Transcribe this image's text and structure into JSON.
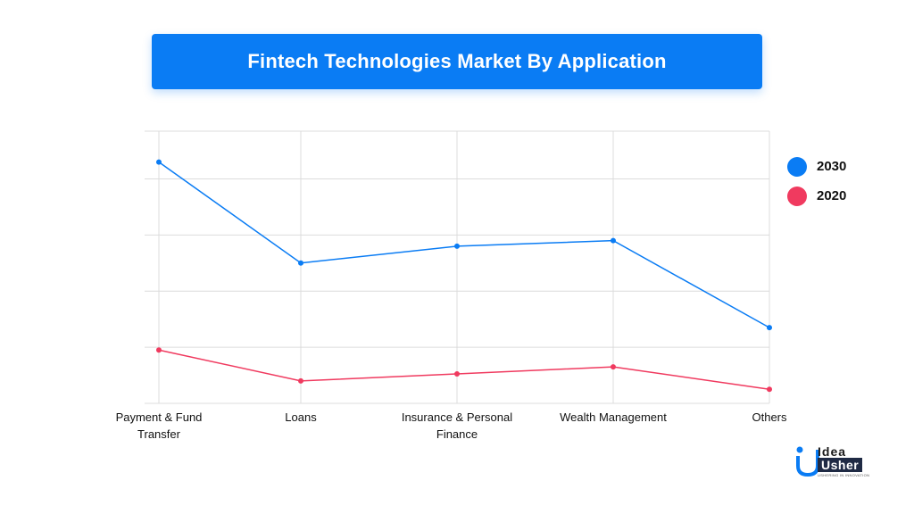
{
  "title": "Fintech Technologies Market By Application",
  "colors": {
    "series_2030": "#0a7cf4",
    "series_2020": "#f03a5f",
    "banner": "#0a7cf4"
  },
  "legend": [
    {
      "label": "2030",
      "color": "#0a7cf4"
    },
    {
      "label": "2020",
      "color": "#f03a5f"
    }
  ],
  "chart_data": {
    "type": "line",
    "title": "Fintech Technologies Market By Application",
    "categories": [
      [
        "Payment & Fund",
        "Transfer"
      ],
      [
        "Loans"
      ],
      [
        "Insurance & Personal",
        "Finance"
      ],
      [
        "Wealth Management"
      ],
      [
        "Others"
      ]
    ],
    "series": [
      {
        "name": "2030",
        "color": "#0a7cf4",
        "values": [
          86,
          50,
          56,
          58,
          27
        ]
      },
      {
        "name": "2020",
        "color": "#f03a5f",
        "values": [
          19,
          8,
          10.5,
          13,
          5
        ]
      }
    ],
    "ylim": [
      0,
      97
    ],
    "gridlines": [
      0,
      20,
      40,
      60,
      80,
      97
    ],
    "grid": true,
    "legend_position": "right"
  },
  "logo": {
    "line1": "Idea",
    "line2": "Usher",
    "tagline": "USHERING IN INNOVATION"
  }
}
